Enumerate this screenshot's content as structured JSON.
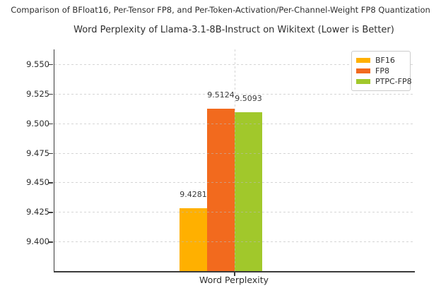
{
  "figure": {
    "suptitle": "Comparison of BFloat16, Per-Tensor FP8, and Per-Token-Activation/Per-Channel-Weight FP8 Quantization"
  },
  "chart_data": {
    "type": "bar",
    "title": "Word Perplexity of Llama-3.1-8B-Instruct on Wikitext (Lower is Better)",
    "categories": [
      "Word Perplexity"
    ],
    "xlabel": "",
    "ylabel": "",
    "ylim": [
      9.375,
      9.5625
    ],
    "yticks": [
      9.4,
      9.425,
      9.45,
      9.475,
      9.5,
      9.525,
      9.55
    ],
    "ytick_labels": [
      "9.400",
      "9.425",
      "9.450",
      "9.475",
      "9.500",
      "9.525",
      "9.550"
    ],
    "grid": true,
    "grid_style": "dashed",
    "legend_position": "upper right",
    "series": [
      {
        "name": "BF16",
        "values": [
          9.4281
        ],
        "value_label": "9.4281",
        "color": "#FFB000"
      },
      {
        "name": "FP8",
        "values": [
          9.5124
        ],
        "value_label": "9.5124",
        "color": "#F26A1E"
      },
      {
        "name": "PTPC-FP8",
        "values": [
          9.5093
        ],
        "value_label": "9.5093",
        "color": "#A1C82B"
      }
    ]
  },
  "colors": {
    "grid": "#DCDCDC",
    "spine": "#3B3B3B",
    "text": "#2F2F2F",
    "legend_border": "#CCCCCC",
    "background": "#FFFFFF"
  }
}
